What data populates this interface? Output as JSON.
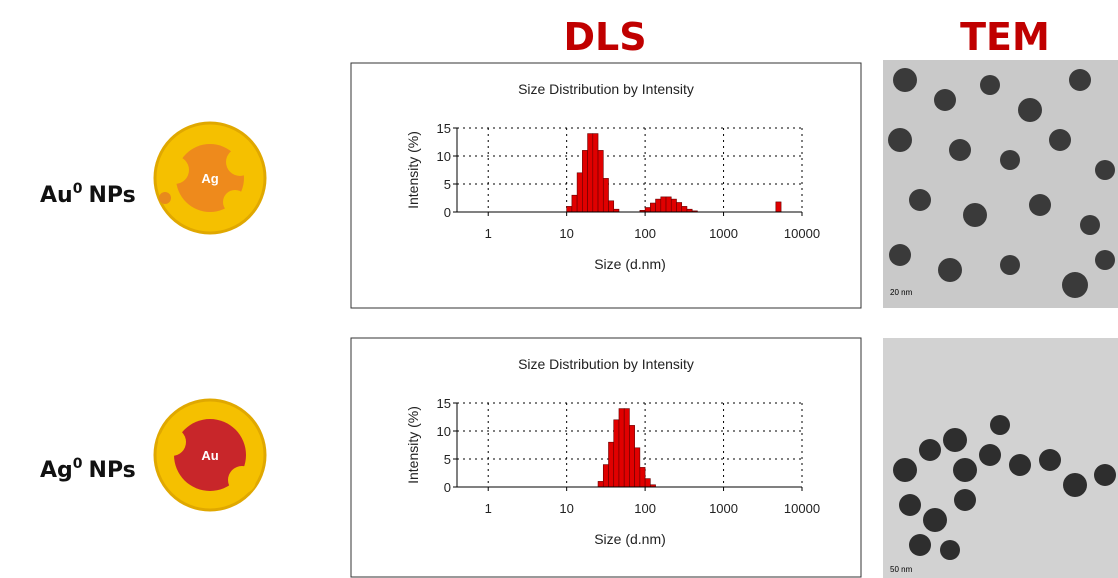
{
  "headers": {
    "dls": "DLS",
    "tem": "TEM"
  },
  "rows": [
    {
      "label": {
        "element": "Au",
        "superscript": "0",
        "suffix": "NPs"
      },
      "core": "Ag",
      "scale_bar": "20 nm"
    },
    {
      "label": {
        "element": "Ag",
        "superscript": "0",
        "suffix": "NPs"
      },
      "core": "Au",
      "scale_bar": "50 nm"
    }
  ],
  "chart_data": [
    {
      "type": "histogram",
      "title": "Size Distribution by Intensity",
      "x_label": "Size (d.nm)",
      "y_label": "Intensity (%)",
      "log_x": true,
      "grid": true,
      "color": "#e00000",
      "xlim": [
        0.4,
        10000
      ],
      "xticks": [
        1,
        10,
        100,
        1000,
        10000
      ],
      "ylim": [
        0,
        15
      ],
      "yticks": [
        0,
        5,
        10,
        15
      ],
      "bins": [
        10,
        11.66,
        13.59,
        15.85,
        18.48,
        21.54,
        25.12,
        29.29,
        34.15,
        39.81,
        46.42,
        54.12,
        63.1,
        73.56,
        85.77,
        100,
        116.6,
        135.9,
        158.5,
        184.8,
        215.4,
        251.2,
        292.9,
        341.5,
        398.1,
        464.2,
        541.2,
        631,
        735.6,
        857.7,
        1000,
        1166,
        1359,
        1585,
        1848,
        2154,
        2512,
        2929,
        3415,
        3981,
        4642,
        5412,
        6310
      ],
      "values": [
        1,
        3,
        7,
        11,
        14,
        14,
        11,
        6,
        2,
        0.5,
        0,
        0,
        0,
        0,
        0.3,
        0.8,
        1.6,
        2.3,
        2.7,
        2.7,
        2.3,
        1.7,
        1,
        0.5,
        0.2,
        0,
        0,
        0,
        0,
        0,
        0,
        0,
        0,
        0,
        0,
        0,
        0,
        0,
        0,
        0,
        1.8,
        0
      ]
    },
    {
      "type": "histogram",
      "title": "Size Distribution by Intensity",
      "x_label": "Size (d.nm)",
      "y_label": "Intensity (%)",
      "log_x": true,
      "grid": true,
      "color": "#e00000",
      "xlim": [
        0.4,
        10000
      ],
      "xticks": [
        1,
        10,
        100,
        1000,
        10000
      ],
      "ylim": [
        0,
        15
      ],
      "yticks": [
        0,
        5,
        10,
        15
      ],
      "bins": [
        10,
        11.66,
        13.59,
        15.85,
        18.48,
        21.54,
        25.12,
        29.29,
        34.15,
        39.81,
        46.42,
        54.12,
        63.1,
        73.56,
        85.77,
        100,
        116.6,
        135.9,
        158.5,
        184.8,
        215.4,
        251.2,
        292.9,
        341.5,
        398.1,
        464.2,
        541.2,
        631,
        735.6,
        857.7,
        1000,
        1166,
        1359,
        1585,
        1848,
        2154,
        2512,
        2929,
        3415,
        3981,
        4642,
        5412,
        6310
      ],
      "values": [
        0,
        0,
        0,
        0,
        0,
        0,
        1,
        4,
        8,
        12,
        14,
        14,
        11,
        7,
        3.5,
        1.5,
        0.4,
        0,
        0,
        0,
        0,
        0,
        0,
        0,
        0,
        0,
        0,
        0,
        0,
        0,
        0,
        0,
        0,
        0,
        0,
        0,
        0,
        0,
        0,
        0,
        0,
        0
      ]
    }
  ]
}
